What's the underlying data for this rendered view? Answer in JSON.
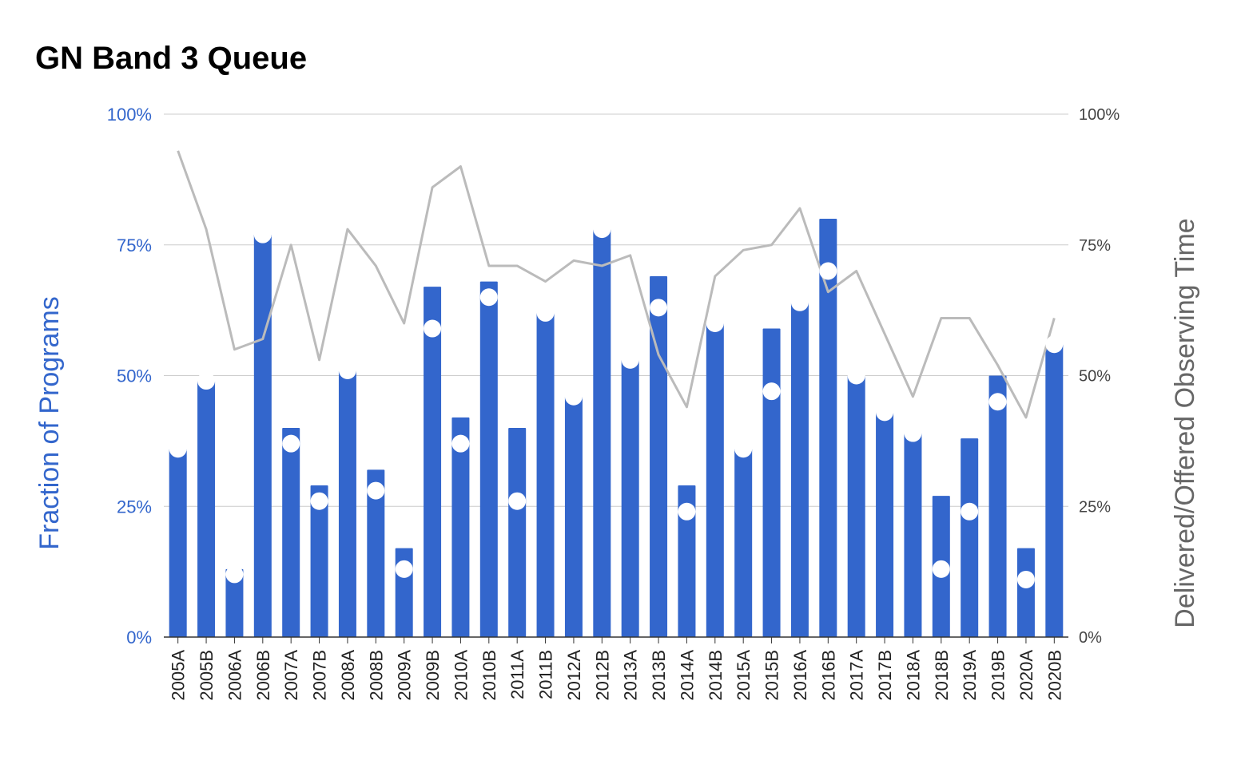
{
  "chart_data": {
    "type": "bar",
    "title": "GN Band 3 Queue",
    "ylabel": "Fraction of Programs",
    "y2label": "Delivered/Offered Observing Time",
    "ylim": [
      0,
      100
    ],
    "y2lim": [
      0,
      100
    ],
    "yticks": [
      "0%",
      "25%",
      "50%",
      "75%",
      "100%"
    ],
    "y2ticks": [
      "0%",
      "25%",
      "50%",
      "75%",
      "100%"
    ],
    "grid": true,
    "categories": [
      "2005A",
      "2005B",
      "2006A",
      "2006B",
      "2007A",
      "2007B",
      "2008A",
      "2008B",
      "2009A",
      "2009B",
      "2010A",
      "2010B",
      "2011A",
      "2011B",
      "2012A",
      "2012B",
      "2013A",
      "2013B",
      "2014A",
      "2014B",
      "2015A",
      "2015B",
      "2016A",
      "2016B",
      "2017A",
      "2017B",
      "2018A",
      "2018B",
      "2019A",
      "2019B",
      "2020A",
      "2020B"
    ],
    "series": [
      {
        "kind": "bar",
        "axis": "left",
        "color": "#3366cc",
        "values": [
          36,
          49,
          13,
          77,
          40,
          29,
          51,
          32,
          17,
          67,
          42,
          68,
          40,
          62,
          46,
          78,
          53,
          69,
          29,
          60,
          36,
          59,
          64,
          80,
          50,
          43,
          39,
          27,
          38,
          50,
          17,
          56
        ]
      },
      {
        "kind": "points",
        "axis": "left",
        "color": "#ffffff",
        "values": [
          36,
          49,
          12,
          77,
          37,
          26,
          51,
          28,
          13,
          59,
          37,
          65,
          26,
          62,
          46,
          78,
          53,
          63,
          24,
          60,
          36,
          47,
          64,
          70,
          50,
          43,
          39,
          13,
          24,
          45,
          11,
          56
        ]
      },
      {
        "kind": "line",
        "axis": "right",
        "color": "#bbbbbb",
        "values": [
          93,
          78,
          55,
          57,
          75,
          53,
          78,
          71,
          60,
          86,
          90,
          71,
          71,
          68,
          72,
          71,
          73,
          54,
          44,
          69,
          74,
          75,
          82,
          66,
          70,
          58,
          46,
          61,
          61,
          52,
          42,
          61
        ]
      }
    ]
  }
}
